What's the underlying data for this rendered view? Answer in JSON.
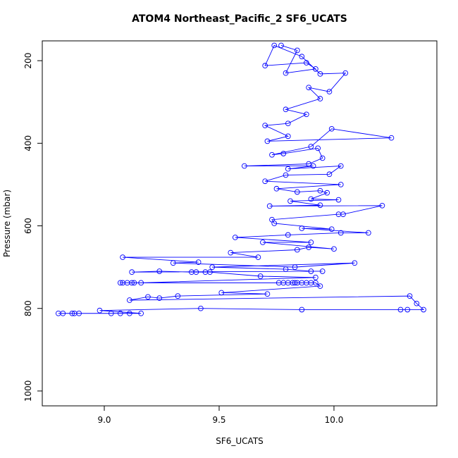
{
  "chart_data": {
    "type": "line",
    "markers": "open-circle",
    "color": "#0000ff",
    "title": "ATOM4 Northeast_Pacific_2 SF6_UCATS",
    "x_label": "SF6_UCATS",
    "y_label": "Pressure (mbar)",
    "xlim": [
      8.73,
      10.448
    ],
    "ylim": [
      1036,
      152
    ],
    "y_inverted": true,
    "xticks": [
      {
        "value": 9,
        "label": "9.0"
      },
      9.5,
      {
        "value": 10,
        "label": "10.0"
      }
    ],
    "yticks": [
      200,
      400,
      600,
      800,
      1000
    ],
    "x": [
      9.77,
      9.84,
      9.79,
      9.92,
      9.88,
      9.7,
      9.74,
      9.86,
      9.94,
      10.05,
      9.98,
      9.89,
      9.94,
      9.79,
      9.88,
      9.8,
      9.7,
      9.8,
      9.71,
      10.25,
      9.99,
      9.9,
      9.73,
      9.78,
      9.93,
      9.95,
      9.89,
      9.61,
      9.91,
      9.8,
      10.03,
      9.98,
      9.79,
      9.7,
      10.03,
      9.75,
      9.84,
      9.94,
      9.97,
      9.9,
      10.02,
      9.81,
      9.94,
      9.72,
      10.21,
      10.04,
      10.02,
      9.73,
      9.74,
      9.99,
      9.86,
      10.15,
      10.03,
      9.8,
      9.57,
      9.9,
      9.69,
      10.0,
      9.89,
      9.84,
      9.55,
      9.67,
      9.08,
      9.41,
      9.3,
      9.83,
      10.09,
      9.47,
      9.79,
      9.9,
      9.95,
      9.12,
      9.24,
      9.38,
      9.4,
      9.44,
      9.46,
      9.68,
      9.92,
      9.16,
      9.13,
      9.12,
      9.1,
      9.08,
      9.07,
      9.76,
      9.78,
      9.8,
      9.82,
      9.83,
      9.84,
      9.86,
      9.88,
      9.9,
      9.92,
      9.94,
      9.51,
      9.71,
      9.32,
      9.24,
      9.19,
      9.11,
      10.33,
      10.36,
      10.39,
      10.32,
      10.29,
      9.86,
      9.42,
      8.98,
      9.16,
      9.11,
      9.07,
      9.03,
      8.89,
      8.87,
      8.86,
      8.82,
      8.8
    ],
    "series": [
      {
        "values": [
          163,
          175,
          230,
          220,
          205,
          212,
          163,
          190,
          232,
          230,
          275,
          265,
          292,
          318,
          330,
          352,
          357,
          383,
          395,
          387,
          365,
          408,
          428,
          425,
          412,
          436,
          450,
          455,
          455,
          462,
          455,
          475,
          477,
          492,
          500,
          510,
          518,
          515,
          520,
          535,
          537,
          540,
          550,
          552,
          551,
          572,
          572,
          585,
          594,
          608,
          606,
          617,
          617,
          622,
          628,
          640,
          640,
          656,
          652,
          658,
          665,
          676,
          676,
          688,
          690,
          700,
          690,
          700,
          705,
          710,
          710,
          712,
          710,
          712,
          712,
          712,
          712,
          722,
          725,
          738,
          738,
          738,
          738,
          738,
          738,
          738,
          738,
          738,
          738,
          738,
          738,
          738,
          738,
          738,
          738,
          746,
          762,
          765,
          770,
          775,
          772,
          780,
          770,
          788,
          803,
          803,
          803,
          803,
          800,
          805,
          812,
          812,
          812,
          812,
          812,
          812,
          812,
          812,
          812
        ]
      }
    ]
  }
}
